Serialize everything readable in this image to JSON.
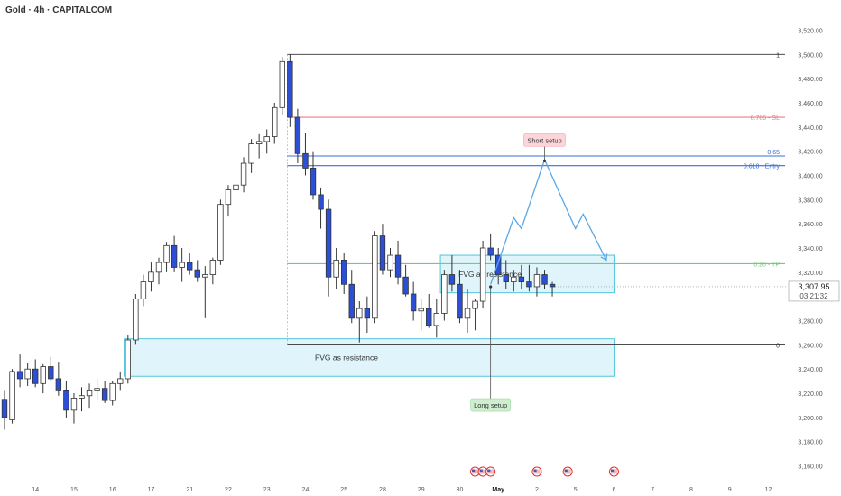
{
  "header": {
    "title": "Gold · 4h · CAPITALCOM"
  },
  "colors": {
    "bull": "#ffffff",
    "bear": "#2c4fd6",
    "wick": "#333333",
    "fvg_fill": "#dff5fb",
    "fvg_border": "#55c5db",
    "sl": "#f0788a",
    "entry": "#3a6fd8",
    "tp": "#79c97d",
    "arrow": "#5aa7e6",
    "fib": "#333333"
  },
  "price_badge": {
    "price": "3,307.95",
    "countdown": "03:21:32"
  },
  "chart_data": {
    "type": "candlestick",
    "symbol": "Gold",
    "timeframe": "4h",
    "ylim": [
      3150,
      3530
    ],
    "y_ticks": [
      "3,160.00",
      "3,180.00",
      "3,200.00",
      "3,220.00",
      "3,240.00",
      "3,260.00",
      "3,280.00",
      "3,300.00",
      "3,320.00",
      "3,340.00",
      "3,360.00",
      "3,380.00",
      "3,400.00",
      "3,420.00",
      "3,440.00",
      "3,460.00",
      "3,480.00",
      "3,500.00",
      "3,520.00"
    ],
    "x_ticks": [
      {
        "label": "14",
        "bar": 4
      },
      {
        "label": "15",
        "bar": 9
      },
      {
        "label": "16",
        "bar": 14
      },
      {
        "label": "17",
        "bar": 19
      },
      {
        "label": "21",
        "bar": 24
      },
      {
        "label": "22",
        "bar": 29
      },
      {
        "label": "23",
        "bar": 34
      },
      {
        "label": "24",
        "bar": 39
      },
      {
        "label": "25",
        "bar": 44
      },
      {
        "label": "28",
        "bar": 49
      },
      {
        "label": "29",
        "bar": 54
      },
      {
        "label": "30",
        "bar": 59
      },
      {
        "label": "May",
        "bar": 64
      },
      {
        "label": "2",
        "bar": 69
      },
      {
        "label": "5",
        "bar": 74
      },
      {
        "label": "6",
        "bar": 79
      },
      {
        "label": "7",
        "bar": 84
      },
      {
        "label": "8",
        "bar": 89
      },
      {
        "label": "9",
        "bar": 94
      },
      {
        "label": "12",
        "bar": 99
      }
    ],
    "candles": [
      [
        3215,
        3222,
        3190,
        3200
      ],
      [
        3198,
        3240,
        3195,
        3238
      ],
      [
        3238,
        3252,
        3225,
        3232
      ],
      [
        3232,
        3245,
        3226,
        3240
      ],
      [
        3240,
        3248,
        3225,
        3228
      ],
      [
        3228,
        3244,
        3220,
        3242
      ],
      [
        3242,
        3250,
        3230,
        3232
      ],
      [
        3232,
        3246,
        3218,
        3222
      ],
      [
        3222,
        3230,
        3200,
        3206
      ],
      [
        3206,
        3220,
        3195,
        3216
      ],
      [
        3216,
        3225,
        3205,
        3218
      ],
      [
        3218,
        3228,
        3208,
        3222
      ],
      [
        3222,
        3232,
        3215,
        3224
      ],
      [
        3224,
        3230,
        3212,
        3214
      ],
      [
        3214,
        3230,
        3210,
        3228
      ],
      [
        3228,
        3238,
        3222,
        3232
      ],
      [
        3232,
        3268,
        3228,
        3264
      ],
      [
        3264,
        3302,
        3260,
        3298
      ],
      [
        3298,
        3318,
        3292,
        3312
      ],
      [
        3312,
        3328,
        3304,
        3320
      ],
      [
        3320,
        3332,
        3310,
        3328
      ],
      [
        3328,
        3345,
        3320,
        3342
      ],
      [
        3342,
        3350,
        3320,
        3324
      ],
      [
        3324,
        3340,
        3312,
        3328
      ],
      [
        3328,
        3336,
        3318,
        3322
      ],
      [
        3322,
        3330,
        3312,
        3316
      ],
      [
        3316,
        3325,
        3282,
        3318
      ],
      [
        3318,
        3332,
        3310,
        3330
      ],
      [
        3330,
        3380,
        3326,
        3376
      ],
      [
        3376,
        3392,
        3366,
        3388
      ],
      [
        3388,
        3396,
        3378,
        3392
      ],
      [
        3392,
        3415,
        3386,
        3410
      ],
      [
        3410,
        3430,
        3402,
        3426
      ],
      [
        3426,
        3434,
        3414,
        3428
      ],
      [
        3428,
        3438,
        3418,
        3432
      ],
      [
        3432,
        3460,
        3426,
        3456
      ],
      [
        3456,
        3498,
        3450,
        3494
      ],
      [
        3494,
        3500,
        3440,
        3448
      ],
      [
        3448,
        3455,
        3410,
        3418
      ],
      [
        3418,
        3435,
        3400,
        3406
      ],
      [
        3406,
        3420,
        3380,
        3384
      ],
      [
        3384,
        3390,
        3356,
        3372
      ],
      [
        3372,
        3380,
        3300,
        3316
      ],
      [
        3316,
        3340,
        3306,
        3330
      ],
      [
        3330,
        3336,
        3302,
        3310
      ],
      [
        3310,
        3322,
        3278,
        3282
      ],
      [
        3282,
        3296,
        3262,
        3290
      ],
      [
        3290,
        3300,
        3270,
        3282
      ],
      [
        3282,
        3354,
        3278,
        3350
      ],
      [
        3350,
        3360,
        3318,
        3322
      ],
      [
        3322,
        3340,
        3316,
        3334
      ],
      [
        3334,
        3346,
        3310,
        3316
      ],
      [
        3316,
        3326,
        3300,
        3302
      ],
      [
        3302,
        3312,
        3280,
        3288
      ],
      [
        3288,
        3298,
        3272,
        3290
      ],
      [
        3290,
        3302,
        3274,
        3276
      ],
      [
        3276,
        3298,
        3266,
        3286
      ],
      [
        3286,
        3322,
        3280,
        3318
      ],
      [
        3318,
        3334,
        3304,
        3310
      ],
      [
        3310,
        3322,
        3278,
        3282
      ],
      [
        3282,
        3306,
        3270,
        3290
      ],
      [
        3290,
        3298,
        3272,
        3296
      ],
      [
        3296,
        3346,
        3290,
        3340
      ],
      [
        3340,
        3352,
        3330,
        3334
      ],
      [
        3334,
        3340,
        3310,
        3318
      ],
      [
        3318,
        3330,
        3306,
        3312
      ],
      [
        3312,
        3322,
        3304,
        3316
      ],
      [
        3316,
        3326,
        3306,
        3312
      ],
      [
        3312,
        3326,
        3304,
        3308
      ],
      [
        3308,
        3324,
        3300,
        3318
      ],
      [
        3318,
        3322,
        3306,
        3310
      ],
      [
        3310,
        3312,
        3300,
        3308
      ]
    ],
    "fib_levels": [
      {
        "label": "1",
        "price": 3500,
        "kind": "fib"
      },
      {
        "label": "0.786 - SL",
        "price": 3448,
        "kind": "sl"
      },
      {
        "label": "0.65",
        "price": 3416,
        "kind": "entry"
      },
      {
        "label": "0.618 - Entry",
        "price": 3408,
        "kind": "entry"
      },
      {
        "label": "0.28 - TP",
        "price": 3327,
        "kind": "tp"
      },
      {
        "label": "0",
        "price": 3260,
        "kind": "fib"
      }
    ],
    "fvg_zones": [
      {
        "label": "FVG as resistance",
        "top": 3265,
        "bottom": 3234,
        "start_bar": 16,
        "end_bar": 79
      },
      {
        "label": "FVG as resistance",
        "top": 3334,
        "bottom": 3303,
        "start_bar": 57,
        "end_bar": 79
      }
    ],
    "annotations": [
      {
        "label": "Short setup",
        "price": 3412,
        "bar": 70
      },
      {
        "label": "Long setup",
        "price": 3220,
        "bar": 63
      }
    ],
    "projected_path": [
      {
        "bar": 63,
        "price": 3310
      },
      {
        "bar": 66,
        "price": 3365
      },
      {
        "bar": 67,
        "price": 3356
      },
      {
        "bar": 70,
        "price": 3413
      },
      {
        "bar": 74,
        "price": 3356
      },
      {
        "bar": 75,
        "price": 3368
      },
      {
        "bar": 78,
        "price": 3330
      }
    ],
    "events": [
      {
        "bar": 61
      },
      {
        "bar": 62
      },
      {
        "bar": 63
      },
      {
        "bar": 69
      },
      {
        "bar": 73
      },
      {
        "bar": 79
      }
    ]
  }
}
